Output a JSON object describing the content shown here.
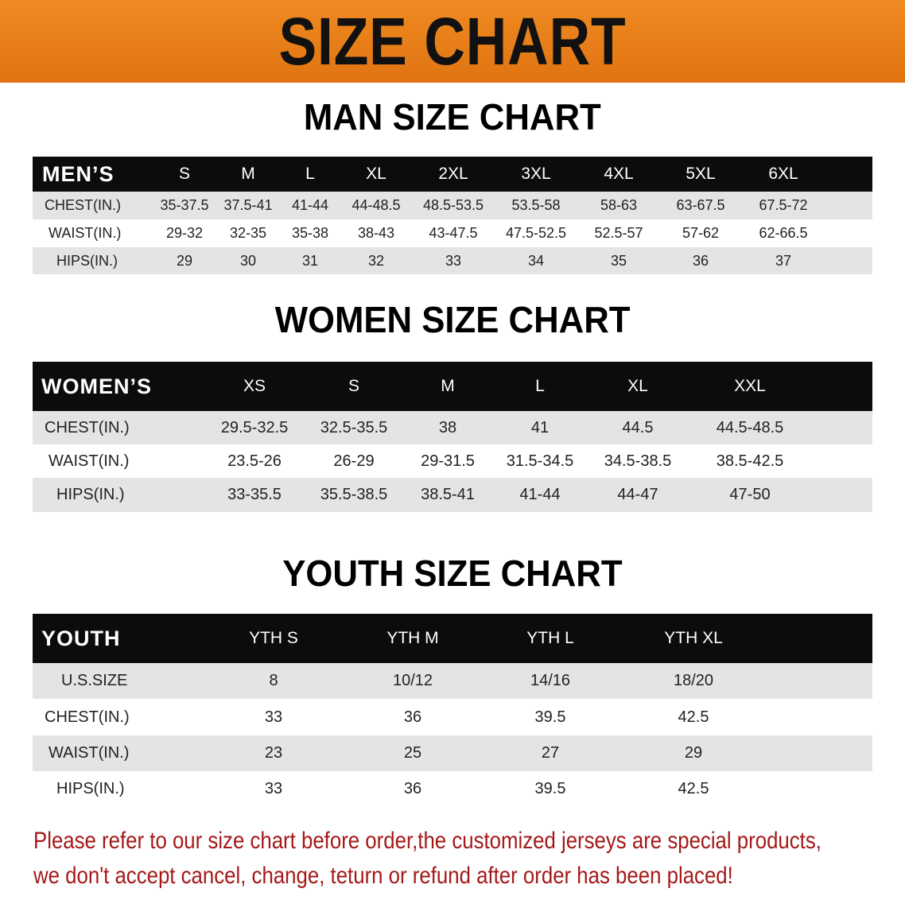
{
  "banner_title": "SIZE CHART",
  "men": {
    "title": "MAN SIZE CHART",
    "header": [
      "MEN’S",
      "S",
      "M",
      "L",
      "XL",
      "2XL",
      "3XL",
      "4XL",
      "5XL",
      "6XL"
    ],
    "rows": [
      [
        "CHEST(IN.)",
        "35-37.5",
        "37.5-41",
        "41-44",
        "44-48.5",
        "48.5-53.5",
        "53.5-58",
        "58-63",
        "63-67.5",
        "67.5-72"
      ],
      [
        "WAIST(IN.)",
        "29-32",
        "32-35",
        "35-38",
        "38-43",
        "43-47.5",
        "47.5-52.5",
        "52.5-57",
        "57-62",
        "62-66.5"
      ],
      [
        "HIPS(IN.)",
        "29",
        "30",
        "31",
        "32",
        "33",
        "34",
        "35",
        "36",
        "37"
      ]
    ]
  },
  "women": {
    "title": "WOMEN SIZE CHART",
    "header": [
      "WOMEN’S",
      "XS",
      "S",
      "M",
      "L",
      "XL",
      "XXL"
    ],
    "rows": [
      [
        "CHEST(IN.)",
        "29.5-32.5",
        "32.5-35.5",
        "38",
        "41",
        "44.5",
        "44.5-48.5"
      ],
      [
        "WAIST(IN.)",
        "23.5-26",
        "26-29",
        "29-31.5",
        "31.5-34.5",
        "34.5-38.5",
        "38.5-42.5"
      ],
      [
        "HIPS(IN.)",
        "33-35.5",
        "35.5-38.5",
        "38.5-41",
        "41-44",
        "44-47",
        "47-50"
      ]
    ]
  },
  "youth": {
    "title": "YOUTH SIZE CHART",
    "header": [
      "YOUTH",
      "YTH S",
      "YTH M",
      "YTH L",
      "YTH XL"
    ],
    "rows": [
      [
        "U.S.SIZE",
        "8",
        "10/12",
        "14/16",
        "18/20"
      ],
      [
        "CHEST(IN.)",
        "33",
        "36",
        "39.5",
        "42.5"
      ],
      [
        "WAIST(IN.)",
        "23",
        "25",
        "27",
        "29"
      ],
      [
        "HIPS(IN.)",
        "33",
        "36",
        "39.5",
        "42.5"
      ]
    ]
  },
  "note": [
    "Please refer to our size chart before order,the customized jerseys are special products,",
    "we don't accept cancel, change, teturn or refund after order has been placed!"
  ],
  "colors": {
    "banner": "#e8801c",
    "header_bg": "#0c0c0c",
    "stripe": "#e4e4e4",
    "note": "#a51818"
  }
}
